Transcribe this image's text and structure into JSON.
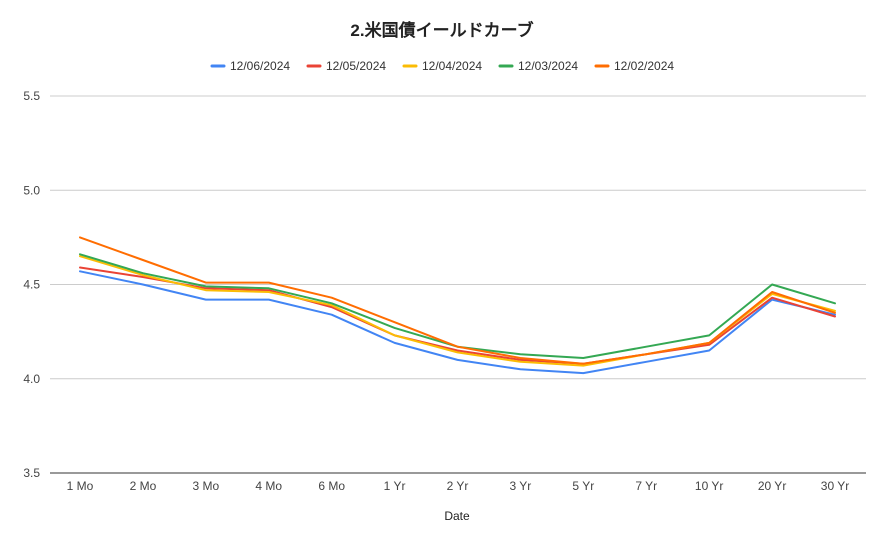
{
  "chart_data": {
    "type": "line",
    "title": "2.米国債イールドカーブ",
    "xlabel": "Date",
    "ylabel": "",
    "categories": [
      "1 Mo",
      "2 Mo",
      "3 Mo",
      "4 Mo",
      "6 Mo",
      "1 Yr",
      "2 Yr",
      "3 Yr",
      "5 Yr",
      "7 Yr",
      "10 Yr",
      "20 Yr",
      "30 Yr"
    ],
    "ylim": [
      3.5,
      5.5
    ],
    "yticks": [
      "3.5",
      "4.0",
      "4.5",
      "5.0",
      "5.5"
    ],
    "grid": true,
    "legend_position": "top",
    "series": [
      {
        "name": "12/06/2024",
        "color": "#4285f4",
        "values": [
          4.57,
          4.5,
          4.42,
          4.42,
          4.34,
          4.19,
          4.1,
          4.05,
          4.03,
          4.09,
          4.15,
          4.42,
          4.34
        ]
      },
      {
        "name": "12/05/2024",
        "color": "#ea4335",
        "values": [
          4.59,
          4.54,
          4.48,
          4.47,
          4.38,
          4.23,
          4.15,
          4.1,
          4.08,
          4.13,
          4.18,
          4.43,
          4.33
        ]
      },
      {
        "name": "12/04/2024",
        "color": "#fbbc04",
        "values": [
          4.65,
          4.55,
          4.47,
          4.46,
          4.39,
          4.23,
          4.14,
          4.09,
          4.07,
          4.13,
          4.19,
          4.45,
          4.36
        ]
      },
      {
        "name": "12/03/2024",
        "color": "#34a853",
        "values": [
          4.66,
          4.56,
          4.49,
          4.48,
          4.4,
          4.27,
          4.17,
          4.13,
          4.11,
          4.17,
          4.23,
          4.5,
          4.4
        ]
      },
      {
        "name": "12/02/2024",
        "color": "#ff6d01",
        "values": [
          4.75,
          4.63,
          4.51,
          4.51,
          4.43,
          4.3,
          4.17,
          4.11,
          4.08,
          4.13,
          4.19,
          4.46,
          4.35
        ]
      }
    ]
  }
}
